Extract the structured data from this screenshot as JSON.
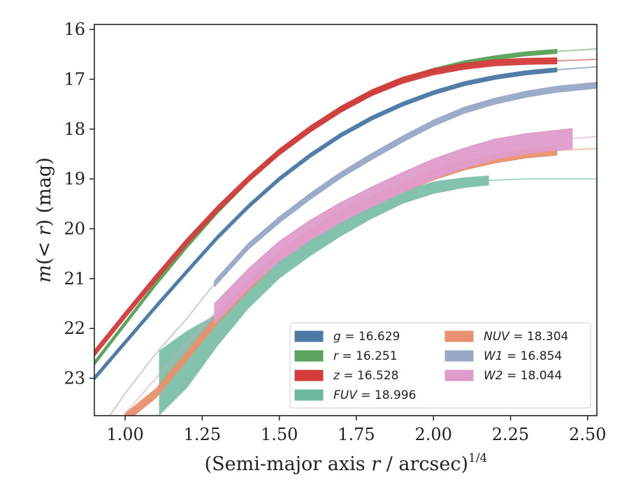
{
  "chart_data": {
    "type": "line",
    "title": "",
    "xlabel": "(Semi-major axis r / arcsec)",
    "xlabel_base": "(Semi-major axis ",
    "xlabel_var": "r",
    "xlabel_unit": " / arcsec)",
    "xlabel_exp": "1/4",
    "ylabel": "m(< r) (mag)",
    "ylabel_m": "m",
    "ylabel_mid": "(< ",
    "ylabel_r": "r",
    "ylabel_tail": ") (mag)",
    "xlim": [
      0.9,
      2.53
    ],
    "ylim": [
      23.75,
      15.9
    ],
    "y_inverted": true,
    "grid": false,
    "legend_position": "lower-right",
    "xticks": [
      1.0,
      1.25,
      1.5,
      1.75,
      2.0,
      2.25,
      2.5
    ],
    "xtick_labels": [
      "1.00",
      "1.25",
      "1.50",
      "1.75",
      "2.00",
      "2.25",
      "2.50"
    ],
    "yticks": [
      16,
      17,
      18,
      19,
      20,
      21,
      22,
      23
    ],
    "ytick_labels": [
      "16",
      "17",
      "18",
      "19",
      "20",
      "21",
      "22",
      "23"
    ],
    "series": [
      {
        "name": "g",
        "label_var": "g",
        "label_value": " = 16.629",
        "color": "#4c7aa5",
        "band_width": 0.04,
        "data_x_max": 2.51,
        "x": [
          0.9,
          1.0,
          1.1,
          1.2,
          1.3,
          1.4,
          1.5,
          1.6,
          1.7,
          1.8,
          1.9,
          2.0,
          2.1,
          2.2,
          2.3,
          2.4,
          2.53
        ],
        "y": [
          23.0,
          22.28,
          21.56,
          20.86,
          20.17,
          19.55,
          19.0,
          18.53,
          18.12,
          17.78,
          17.5,
          17.27,
          17.09,
          16.96,
          16.87,
          16.81,
          16.75
        ]
      },
      {
        "name": "r",
        "label_var": "r",
        "label_value": " = 16.251",
        "color": "#5aa35a",
        "band_width": 0.04,
        "data_x_max": 2.51,
        "x": [
          0.9,
          1.0,
          1.1,
          1.2,
          1.3,
          1.4,
          1.5,
          1.6,
          1.7,
          1.8,
          1.9,
          2.0,
          2.1,
          2.2,
          2.3,
          2.4,
          2.53
        ],
        "y": [
          22.7,
          21.9,
          21.1,
          20.35,
          19.65,
          19.02,
          18.47,
          18.0,
          17.6,
          17.27,
          17.01,
          16.82,
          16.67,
          16.57,
          16.49,
          16.44,
          16.39
        ]
      },
      {
        "name": "z",
        "label_var": "z",
        "label_value": " = 16.528",
        "color": "#d43c3c",
        "band_width": 0.06,
        "data_x_max": 2.4,
        "x": [
          0.9,
          1.0,
          1.1,
          1.2,
          1.3,
          1.4,
          1.5,
          1.6,
          1.7,
          1.8,
          1.9,
          2.0,
          2.1,
          2.2,
          2.3,
          2.4,
          2.53
        ],
        "y": [
          22.5,
          21.73,
          20.98,
          20.26,
          19.6,
          19.0,
          18.46,
          18.0,
          17.6,
          17.27,
          17.02,
          16.85,
          16.74,
          16.67,
          16.64,
          16.63,
          16.6
        ]
      },
      {
        "name": "FUV",
        "label_var": "FUV",
        "label_value": " = 18.996",
        "color": "#6db9a0",
        "band": true,
        "data_x_max": 2.18,
        "x": [
          1.11,
          1.2,
          1.3,
          1.4,
          1.5,
          1.6,
          1.7,
          1.8,
          1.9,
          2.0,
          2.1,
          2.18,
          2.3,
          2.4,
          2.53
        ],
        "y_hi": [
          22.45,
          22.05,
          21.7,
          21.15,
          20.65,
          20.2,
          19.85,
          19.55,
          19.25,
          19.05,
          18.97,
          18.93,
          18.99,
          18.99,
          18.99
        ],
        "y_lo": [
          23.75,
          23.2,
          22.35,
          21.6,
          21.0,
          20.55,
          20.15,
          19.8,
          19.5,
          19.3,
          19.18,
          19.13,
          19.01,
          19.01,
          19.01
        ]
      },
      {
        "name": "NUV",
        "label_var": "NUV",
        "label_value": " = 18.304",
        "color": "#e8916e",
        "band_width": 0.09,
        "data_x_max": 2.51,
        "x": [
          1.0,
          1.1,
          1.2,
          1.3,
          1.4,
          1.5,
          1.6,
          1.7,
          1.8,
          1.9,
          2.0,
          2.1,
          2.2,
          2.3,
          2.4,
          2.53
        ],
        "y": [
          23.8,
          23.3,
          22.55,
          21.8,
          21.15,
          20.55,
          20.1,
          19.72,
          19.43,
          19.18,
          18.93,
          18.73,
          18.59,
          18.49,
          18.43,
          18.39
        ]
      },
      {
        "name": "W1",
        "label_var": "W1",
        "label_value": " = 16.854",
        "color": "#98a8c6",
        "band_width": 0.06,
        "data_x_min": 1.29,
        "data_x_max": 2.53,
        "x": [
          0.95,
          1.0,
          1.1,
          1.2,
          1.29,
          1.4,
          1.5,
          1.6,
          1.7,
          1.8,
          1.9,
          2.0,
          2.1,
          2.2,
          2.3,
          2.4,
          2.53
        ],
        "y": [
          23.75,
          23.3,
          22.5,
          21.8,
          21.1,
          20.35,
          19.82,
          19.35,
          18.92,
          18.55,
          18.2,
          17.88,
          17.62,
          17.44,
          17.3,
          17.2,
          17.12
        ]
      },
      {
        "name": "W2",
        "label_var": "W2",
        "label_value": " = 18.044",
        "color": "#df9ccb",
        "band_width": 0.2,
        "data_x_min": 1.29,
        "data_x_max": 2.45,
        "x": [
          1.0,
          1.1,
          1.2,
          1.29,
          1.4,
          1.5,
          1.6,
          1.7,
          1.8,
          1.9,
          2.0,
          2.1,
          2.2,
          2.3,
          2.45,
          2.53
        ],
        "y": [
          23.7,
          23.0,
          22.3,
          21.7,
          21.0,
          20.45,
          20.03,
          19.67,
          19.36,
          19.07,
          18.8,
          18.58,
          18.4,
          18.29,
          18.19,
          18.15
        ]
      }
    ],
    "legend_order": [
      "g",
      "r",
      "z",
      "FUV",
      "NUV",
      "W1",
      "W2"
    ]
  }
}
